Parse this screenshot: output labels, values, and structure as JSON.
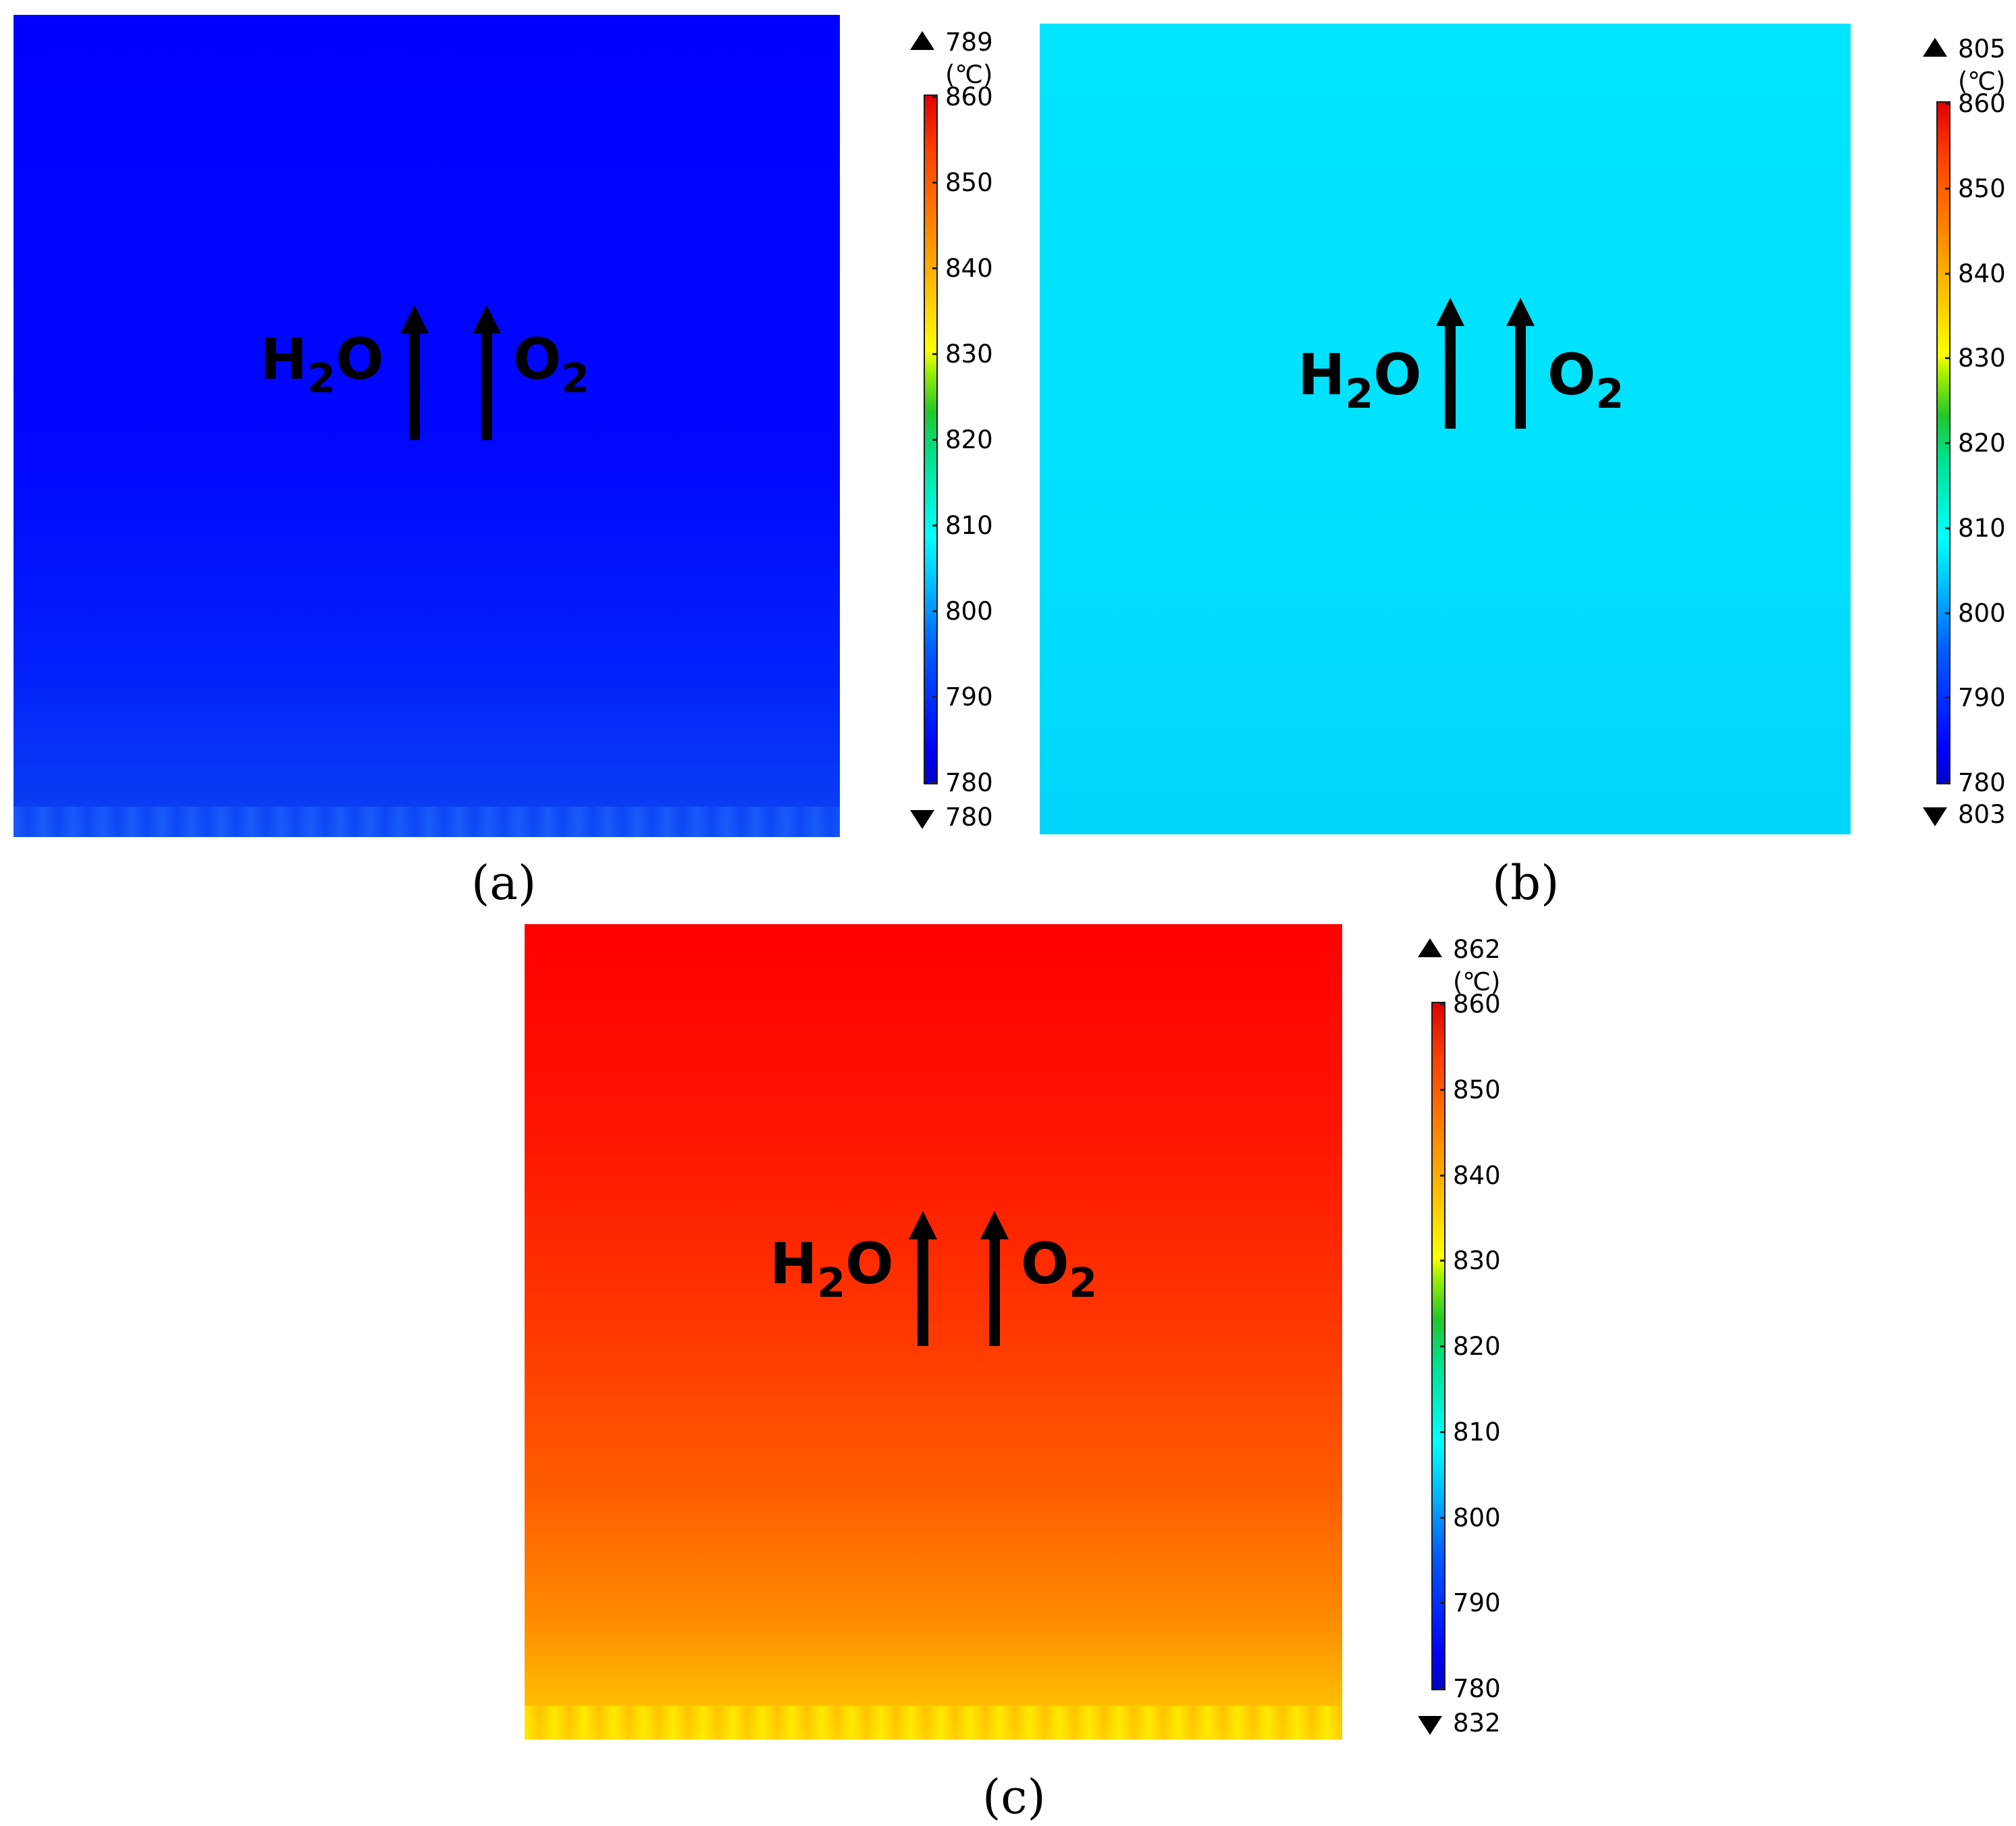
{
  "chart_data": [
    {
      "type": "heatmap",
      "panel_label": "(a)",
      "quantity_unit": "(℃)",
      "max_label": "789",
      "min_label": "780",
      "max_value": 789,
      "min_value": 780,
      "colorbar": {
        "range": [
          780,
          860
        ],
        "ticks": [
          "860",
          "850",
          "840",
          "830",
          "820",
          "810",
          "800",
          "790",
          "780"
        ]
      },
      "gradient_direction": "increases-toward-bottom",
      "annotations": [
        "H2O",
        "O2"
      ],
      "flow_direction": "up"
    },
    {
      "type": "heatmap",
      "panel_label": "(b)",
      "quantity_unit": "(℃)",
      "max_label": "805",
      "min_label": "803",
      "max_value": 805,
      "min_value": 803,
      "colorbar": {
        "range": [
          780,
          860
        ],
        "ticks": [
          "860",
          "850",
          "840",
          "830",
          "820",
          "810",
          "800",
          "790",
          "780"
        ]
      },
      "gradient_direction": "increases-toward-top",
      "annotations": [
        "H2O",
        "O2"
      ],
      "flow_direction": "up"
    },
    {
      "type": "heatmap",
      "panel_label": "(c)",
      "quantity_unit": "(℃)",
      "max_label": "862",
      "min_label": "832",
      "max_value": 862,
      "min_value": 832,
      "colorbar": {
        "range": [
          780,
          860
        ],
        "ticks": [
          "860",
          "850",
          "840",
          "830",
          "820",
          "810",
          "800",
          "790",
          "780"
        ]
      },
      "gradient_direction": "increases-toward-top",
      "annotations": [
        "H2O",
        "O2"
      ],
      "flow_direction": "up"
    }
  ],
  "labels": {
    "h": "H",
    "h_sub": "2",
    "o": "O",
    "o2_main": "O",
    "o2_sub": "2"
  },
  "colors": {
    "panel_a_top": "#0000ff",
    "panel_a_bottom": "#0a44f2",
    "panel_b_top": "#00e6ff",
    "panel_b_bottom": "#00d5fb",
    "panel_c_top": "#ff0000",
    "panel_c_mid": "#ff4a00",
    "panel_c_low": "#ffad00",
    "panel_c_bottom": "#ffdc00",
    "arrow": "#000000"
  }
}
